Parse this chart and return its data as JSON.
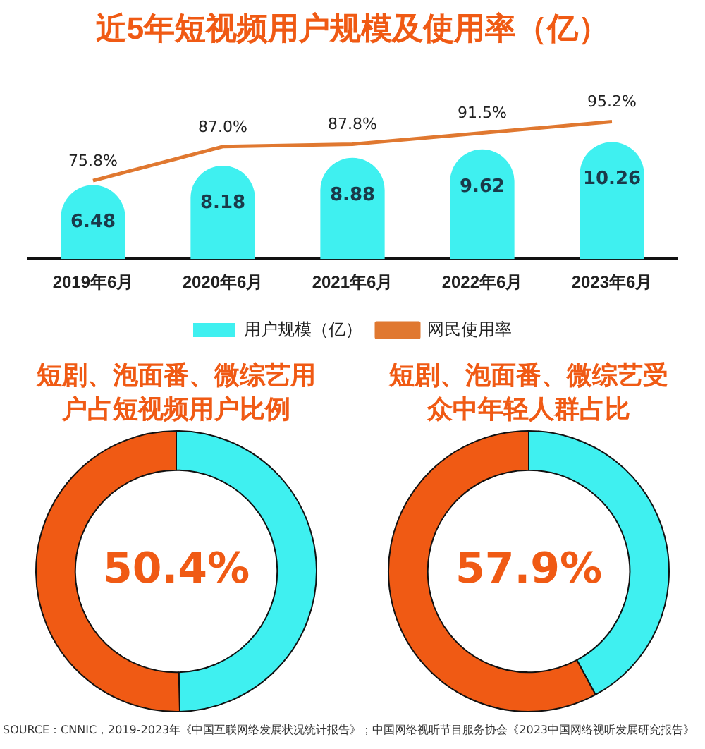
{
  "chart_data": [
    {
      "type": "bar",
      "title": "近5年短视频用户规模及使用率（亿）",
      "categories": [
        "2019年6月",
        "2020年6月",
        "2021年6月",
        "2022年6月",
        "2023年6月"
      ],
      "series": [
        {
          "name": "用户规模（亿）",
          "type": "bar",
          "color": "#3ff0f0",
          "values": [
            6.48,
            8.18,
            8.88,
            9.62,
            10.26
          ],
          "value_labels": [
            "6.48",
            "8.18",
            "8.88",
            "9.62",
            "10.26"
          ]
        },
        {
          "name": "网民使用率",
          "type": "line",
          "axis": "y2",
          "color": "#e07830",
          "values": [
            75.8,
            87.0,
            87.8,
            91.5,
            95.2
          ],
          "value_labels": [
            "75.8%",
            "87.0%",
            "87.8%",
            "91.5%",
            "95.2%"
          ]
        }
      ],
      "legend": "bottom",
      "tick_labels": "x",
      "marker": "none"
    },
    {
      "type": "donut",
      "title": "短剧、泡面番、微综艺用户占短视频用户比例",
      "categories": [
        null,
        null
      ],
      "values": [
        49.6,
        50.4
      ],
      "colors": [
        "#3ff0f0",
        "#f05a14"
      ],
      "value_labels": [
        null,
        "50.4%"
      ],
      "legend": false
    },
    {
      "type": "donut",
      "title": "短剧、泡面番、微综艺受众中年轻人群占比",
      "categories": [
        null,
        null
      ],
      "values": [
        42.1,
        57.9
      ],
      "colors": [
        "#3ff0f0",
        "#f05a14"
      ],
      "value_labels": [
        null,
        "57.9%"
      ],
      "legend": false,
      "annotations": [
        "SOURCE：CNNIC，2019-2023年《中国互联网络发展状况统计报告》；中国网络视听节目服务协会《2023中国网络视听发展研究报告》"
      ]
    }
  ]
}
